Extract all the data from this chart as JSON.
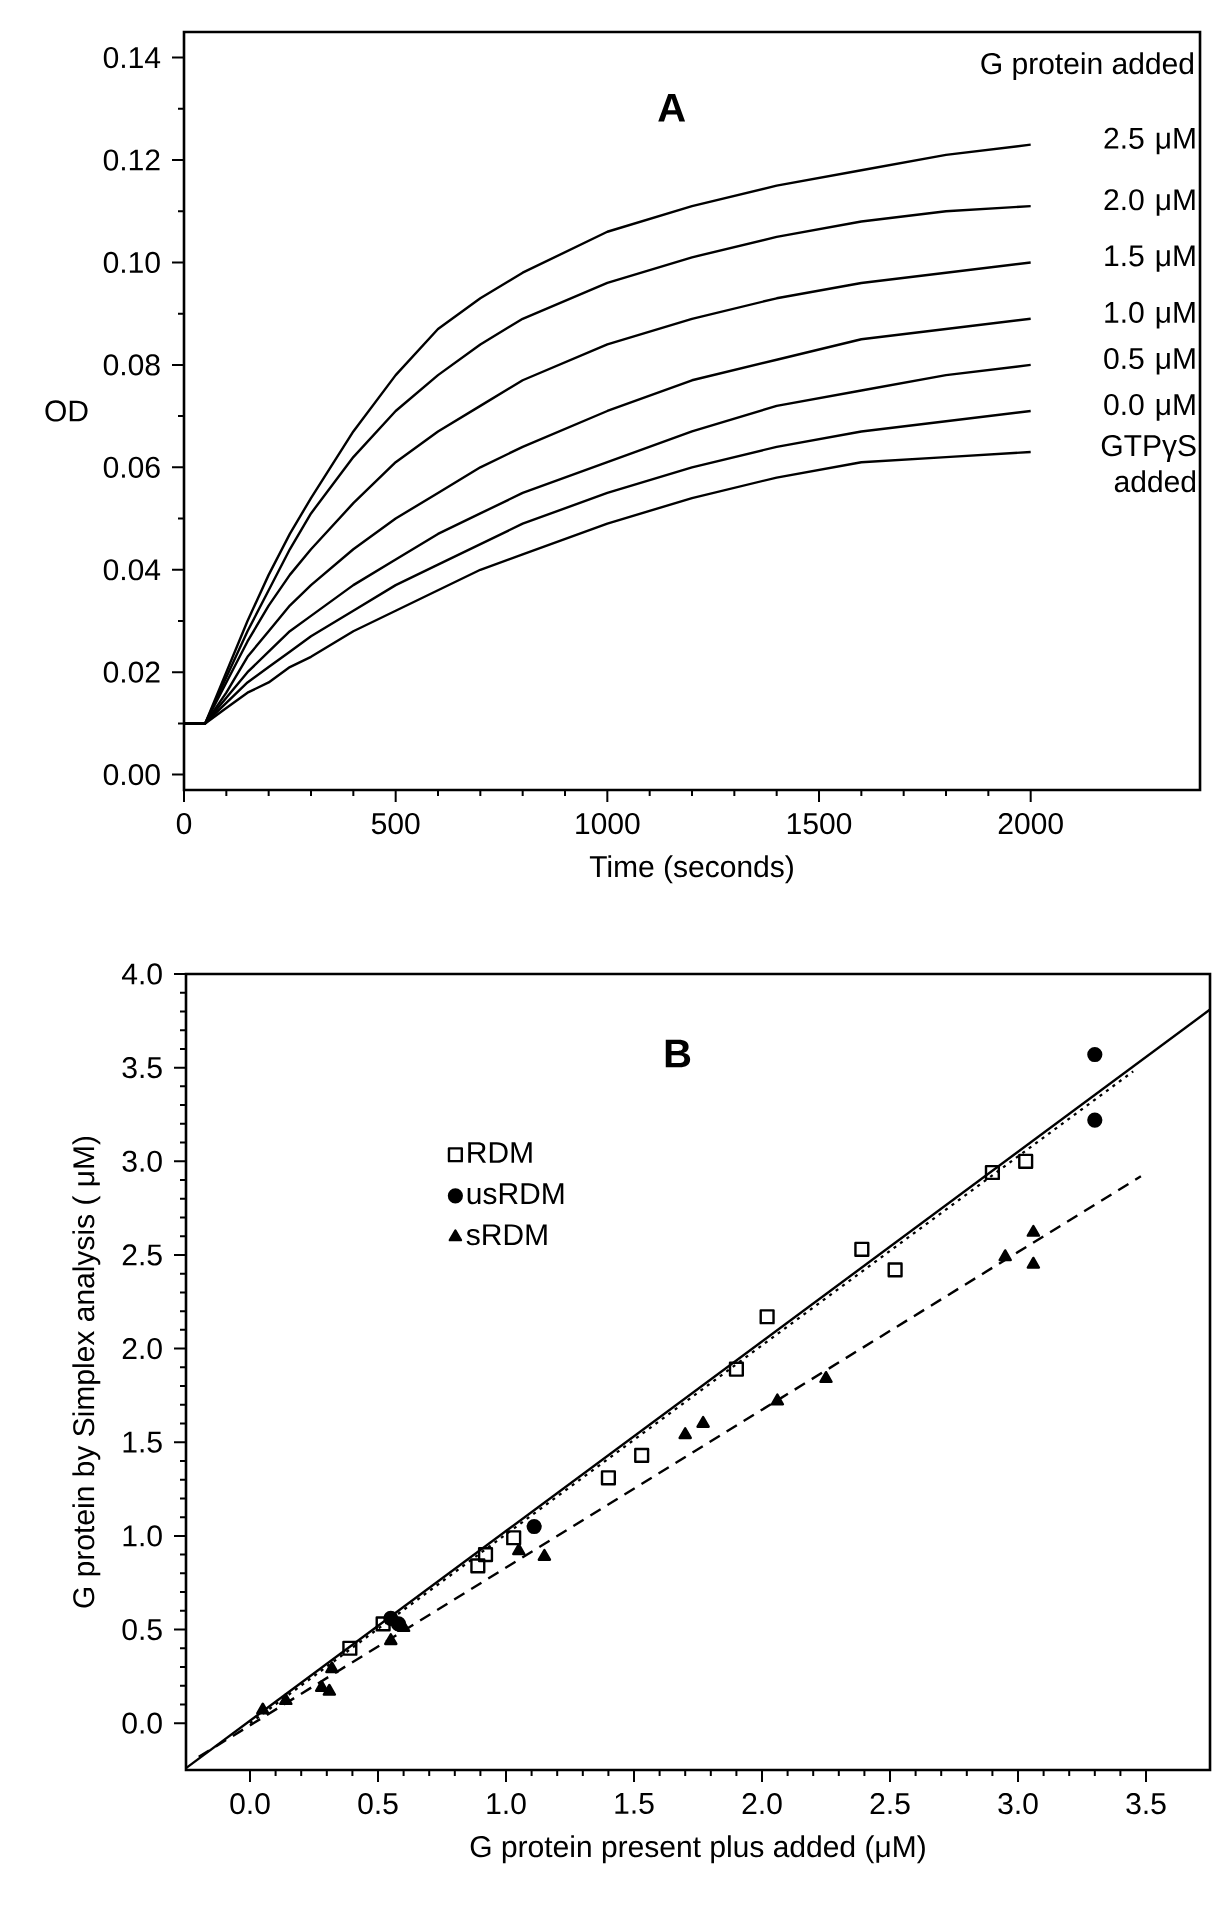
{
  "chart_data": [
    {
      "type": "line",
      "xlabel": "Time (seconds)",
      "ylabel": "OD",
      "legend_title": "G protein added",
      "annotations": [
        "A"
      ],
      "xlim": [
        0,
        2400
      ],
      "ylim": [
        -0.003,
        0.145
      ],
      "xticks": [
        0,
        500,
        1000,
        1500,
        2000
      ],
      "yticks": [
        {
          "value": 0,
          "label": "0.00"
        },
        {
          "value": 0.02,
          "label": "0.02"
        },
        {
          "value": 0.04,
          "label": "0.04"
        },
        {
          "value": 0.06,
          "label": "0.06"
        },
        {
          "value": 0.08,
          "label": "0.08"
        },
        {
          "value": 0.1,
          "label": "0.10"
        },
        {
          "value": 0.12,
          "label": "0.12"
        },
        {
          "value": 0.14,
          "label": "0.14"
        }
      ],
      "x": [
        0,
        50,
        100,
        150,
        200,
        250,
        300,
        400,
        500,
        600,
        700,
        800,
        1000,
        1200,
        1400,
        1600,
        1800,
        2000
      ],
      "series": [
        {
          "name": "2.5 μM",
          "color": "#000000",
          "values": [
            0.01,
            0.01,
            0.02,
            0.03,
            0.039,
            0.047,
            0.054,
            0.067,
            0.078,
            0.087,
            0.093,
            0.098,
            0.106,
            0.111,
            0.115,
            0.118,
            0.121,
            0.123
          ]
        },
        {
          "name": "2.0 μM",
          "color": "#000000",
          "values": [
            0.01,
            0.01,
            0.019,
            0.028,
            0.036,
            0.044,
            0.051,
            0.062,
            0.071,
            0.078,
            0.084,
            0.089,
            0.096,
            0.101,
            0.105,
            0.108,
            0.11,
            0.111
          ]
        },
        {
          "name": "1.5 μM",
          "color": "#000000",
          "values": [
            0.01,
            0.01,
            0.018,
            0.026,
            0.033,
            0.039,
            0.044,
            0.053,
            0.061,
            0.067,
            0.072,
            0.077,
            0.084,
            0.089,
            0.093,
            0.096,
            0.098,
            0.1
          ]
        },
        {
          "name": "1.0 μM",
          "color": "#000000",
          "values": [
            0.01,
            0.01,
            0.016,
            0.023,
            0.028,
            0.033,
            0.037,
            0.044,
            0.05,
            0.055,
            0.06,
            0.064,
            0.071,
            0.077,
            0.081,
            0.085,
            0.087,
            0.089
          ]
        },
        {
          "name": "0.5 μM",
          "color": "#000000",
          "values": [
            0.01,
            0.01,
            0.015,
            0.02,
            0.024,
            0.028,
            0.031,
            0.037,
            0.042,
            0.047,
            0.051,
            0.055,
            0.061,
            0.067,
            0.072,
            0.075,
            0.078,
            0.08
          ]
        },
        {
          "name": "0.0 μM",
          "color": "#000000",
          "values": [
            0.01,
            0.01,
            0.014,
            0.018,
            0.021,
            0.024,
            0.027,
            0.032,
            0.037,
            0.041,
            0.045,
            0.049,
            0.055,
            0.06,
            0.064,
            0.067,
            0.069,
            0.071
          ]
        },
        {
          "name": "GTPγS added",
          "color": "#000000",
          "values": [
            0.01,
            0.01,
            0.013,
            0.016,
            0.018,
            0.021,
            0.023,
            0.028,
            0.032,
            0.036,
            0.04,
            0.043,
            0.049,
            0.054,
            0.058,
            0.061,
            0.062,
            0.063
          ]
        }
      ]
    },
    {
      "type": "scatter",
      "xlabel": "G protein present plus added (μM)",
      "ylabel": "G protein by Simplex analysis ( μM)",
      "annotations": [
        "B"
      ],
      "legend": "top left",
      "xlim": [
        -0.25,
        3.75
      ],
      "ylim": [
        -0.25,
        4.0
      ],
      "xticks": [
        {
          "value": 0,
          "label": "0.0"
        },
        {
          "value": 0.5,
          "label": "0.5"
        },
        {
          "value": 1.0,
          "label": "1.0"
        },
        {
          "value": 1.5,
          "label": "1.5"
        },
        {
          "value": 2.0,
          "label": "2.0"
        },
        {
          "value": 2.5,
          "label": "2.5"
        },
        {
          "value": 3.0,
          "label": "3.0"
        },
        {
          "value": 3.5,
          "label": "3.5"
        }
      ],
      "yticks": [
        {
          "value": 0,
          "label": "0.0"
        },
        {
          "value": 0.5,
          "label": "0.5"
        },
        {
          "value": 1.0,
          "label": "1.0"
        },
        {
          "value": 1.5,
          "label": "1.5"
        },
        {
          "value": 2.0,
          "label": "2.0"
        },
        {
          "value": 2.5,
          "label": "2.5"
        },
        {
          "value": 3.0,
          "label": "3.0"
        },
        {
          "value": 3.5,
          "label": "3.5"
        },
        {
          "value": 4.0,
          "label": "4.0"
        }
      ],
      "series": [
        {
          "name": "RDM",
          "color": "#000000",
          "marker": "square",
          "x": [
            0.39,
            0.52,
            0.89,
            0.92,
            1.03,
            1.4,
            1.53,
            1.9,
            2.02,
            2.39,
            2.52,
            2.9,
            3.03
          ],
          "values": [
            0.4,
            0.53,
            0.84,
            0.9,
            0.99,
            1.31,
            1.43,
            1.89,
            2.17,
            2.53,
            2.42,
            2.94,
            3.0
          ]
        },
        {
          "name": "usRDM",
          "color": "#000000",
          "marker": "circle",
          "x": [
            0.55,
            0.58,
            1.11,
            3.3,
            3.3
          ],
          "values": [
            0.56,
            0.53,
            1.05,
            3.57,
            3.22
          ]
        },
        {
          "name": "sRDM",
          "color": "#000000",
          "marker": "triangle",
          "x": [
            0.05,
            0.14,
            0.28,
            0.31,
            0.32,
            0.55,
            0.6,
            1.05,
            1.15,
            1.7,
            1.77,
            2.06,
            2.25,
            2.95,
            3.06,
            3.06
          ],
          "values": [
            0.07,
            0.12,
            0.19,
            0.17,
            0.29,
            0.44,
            0.51,
            0.92,
            0.89,
            1.54,
            1.6,
            1.72,
            1.84,
            2.49,
            2.45,
            2.62
          ]
        },
        {
          "type": "line",
          "color": "#000000",
          "line_style": "solid",
          "x": [
            -0.25,
            3.75
          ],
          "values": [
            -0.24,
            3.81
          ]
        },
        {
          "type": "line",
          "color": "#000000",
          "line_style": "dotted",
          "x": [
            0.0,
            3.45
          ],
          "values": [
            0.0,
            3.48
          ]
        },
        {
          "type": "line",
          "color": "#000000",
          "line_style": "dashed",
          "x": [
            -0.2,
            3.48
          ],
          "values": [
            -0.18,
            2.92
          ]
        }
      ]
    }
  ]
}
